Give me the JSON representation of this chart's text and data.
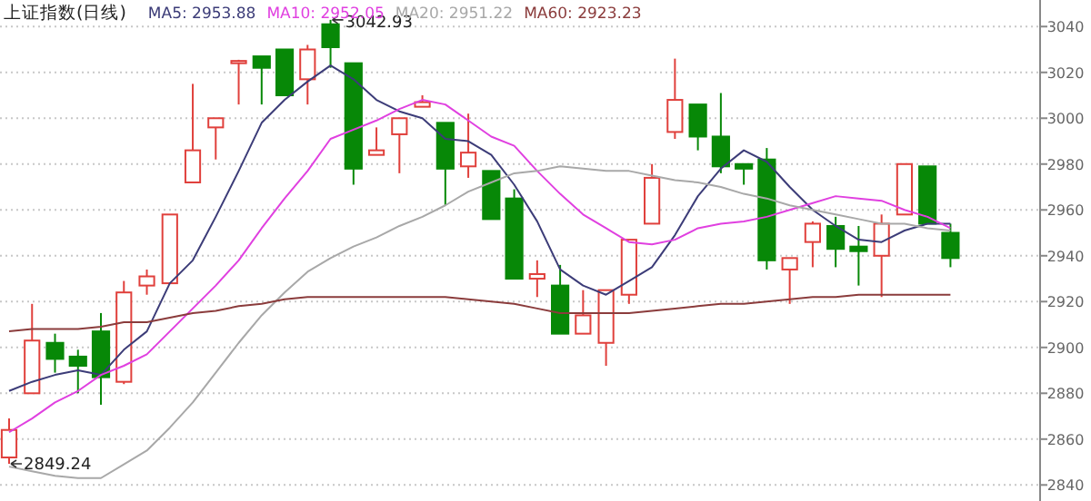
{
  "chart_data": {
    "type": "candlestick",
    "title": "上证指数(日线)",
    "categories": [
      null,
      null,
      null,
      null,
      null,
      null,
      null,
      null,
      null,
      null,
      null,
      null,
      null,
      null,
      null,
      null,
      null,
      null,
      null,
      null,
      null,
      null,
      null,
      null,
      null,
      null,
      null,
      null,
      null,
      null,
      null,
      null,
      null,
      null,
      null,
      null,
      null,
      null,
      null,
      null,
      null,
      null
    ],
    "ohlc": [
      [
        2852,
        2869,
        2849.24,
        2864
      ],
      [
        2880,
        2919,
        2880,
        2903
      ],
      [
        2902,
        2906,
        2889,
        2895
      ],
      [
        2896,
        2899,
        2880,
        2892
      ],
      [
        2907,
        2915,
        2875,
        2887
      ],
      [
        2885,
        2929,
        2884,
        2924
      ],
      [
        2927,
        2934,
        2923,
        2931
      ],
      [
        2928,
        2958,
        2928,
        2958
      ],
      [
        2972,
        3015,
        2972,
        2986
      ],
      [
        2996,
        3000,
        2982,
        3000
      ],
      [
        3024,
        3025.5,
        3006,
        3025
      ],
      [
        3027,
        3027,
        3006,
        3022
      ],
      [
        3030,
        3030,
        3010,
        3010
      ],
      [
        3017,
        3032,
        3006,
        3030
      ],
      [
        3041,
        3042.93,
        3022,
        3031
      ],
      [
        3024,
        3024,
        2971,
        2978
      ],
      [
        2984,
        2996,
        2984,
        2986
      ],
      [
        2993,
        3000,
        2976,
        3000
      ],
      [
        3005,
        3010,
        3005,
        3007
      ],
      [
        2998,
        2998,
        2962,
        2978
      ],
      [
        2979,
        3002,
        2974,
        2985
      ],
      [
        2977,
        2977,
        2956,
        2956
      ],
      [
        2965,
        2969,
        2930,
        2930
      ],
      [
        2930,
        2938,
        2922,
        2932
      ],
      [
        2927,
        2936,
        2906,
        2906
      ],
      [
        2906,
        2925,
        2906,
        2914
      ],
      [
        2902,
        2925,
        2892,
        2925
      ],
      [
        2923,
        2947,
        2919,
        2947
      ],
      [
        2954,
        2980,
        2954,
        2974
      ],
      [
        2994,
        3026,
        2991,
        3008
      ],
      [
        3006,
        3006,
        2986,
        2992
      ],
      [
        2992,
        3011,
        2976,
        2979
      ],
      [
        2980,
        2980,
        2971,
        2978
      ],
      [
        2982,
        2987,
        2934,
        2938
      ],
      [
        2934,
        2939,
        2919,
        2939
      ],
      [
        2946,
        2955,
        2935,
        2954
      ],
      [
        2953,
        2957,
        2935,
        2943
      ],
      [
        2944,
        2953,
        2927,
        2942
      ],
      [
        2940,
        2958,
        2922,
        2954
      ],
      [
        2958,
        2980,
        2958,
        2980
      ],
      [
        2979,
        2979,
        2954,
        2954
      ],
      [
        2950,
        2954,
        2935,
        2939
      ]
    ],
    "series": [
      {
        "name": "MA5: 2953.88",
        "type": "line",
        "color": "#3c3c78",
        "values": [
          2881,
          2885,
          2888,
          2890,
          2888,
          2899,
          2907,
          2928,
          2938,
          2957,
          2977,
          2998,
          3008,
          3016,
          3023,
          3017,
          3008,
          3003,
          3000,
          2991,
          2990,
          2984,
          2971,
          2955,
          2934,
          2927,
          2923,
          2929,
          2935,
          2949,
          2966,
          2978,
          2986,
          2981,
          2970,
          2960,
          2953,
          2947,
          2946,
          2951,
          2954,
          2954
        ]
      },
      {
        "name": "MA10: 2952.05",
        "type": "line",
        "color": "#e040e0",
        "values": [
          2863,
          2869,
          2876,
          2881,
          2888,
          2892,
          2897,
          2907,
          2917,
          2927,
          2938,
          2952,
          2965,
          2977,
          2991,
          2995,
          2999,
          3004,
          3008,
          3006,
          2999,
          2992,
          2988,
          2977,
          2967,
          2958,
          2952,
          2946,
          2945,
          2947,
          2952,
          2954,
          2955,
          2957,
          2960,
          2963,
          2966,
          2965,
          2964,
          2960,
          2957,
          2952
        ]
      },
      {
        "name": "MA20: 2951.22",
        "type": "line",
        "color": "#a8a8a8",
        "values": [
          2848,
          2846,
          2844,
          2843,
          2843,
          2849,
          2855,
          2865,
          2876,
          2889,
          2902,
          2914,
          2924,
          2933,
          2939,
          2944,
          2948,
          2953,
          2957,
          2962,
          2968,
          2972,
          2976,
          2977,
          2979,
          2978,
          2977,
          2977,
          2975,
          2973,
          2972,
          2970,
          2967,
          2965,
          2962,
          2960,
          2958,
          2956,
          2954,
          2954,
          2952,
          2951
        ]
      },
      {
        "name": "MA60: 2923.23",
        "type": "line",
        "color": "#8b3c3c",
        "values": [
          2907,
          2908,
          2908,
          2908,
          2909,
          2911,
          2911,
          2913,
          2915,
          2916,
          2918,
          2919,
          2921,
          2922,
          2922,
          2922,
          2922,
          2922,
          2922,
          2922,
          2921,
          2920,
          2919,
          2917,
          2915,
          2915,
          2915,
          2915,
          2916,
          2917,
          2918,
          2919,
          2919,
          2920,
          2921,
          2922,
          2922,
          2923,
          2923,
          2923,
          2923,
          2923
        ]
      }
    ],
    "ylim": [
      2833,
      3050
    ],
    "yticks": [
      2840,
      2860,
      2880,
      2900,
      2920,
      2940,
      2960,
      2980,
      3000,
      3020,
      3040
    ],
    "grid": "y",
    "legend": "top left",
    "marker": "none",
    "annotations": [
      "3042.93",
      "2849.24"
    ]
  }
}
